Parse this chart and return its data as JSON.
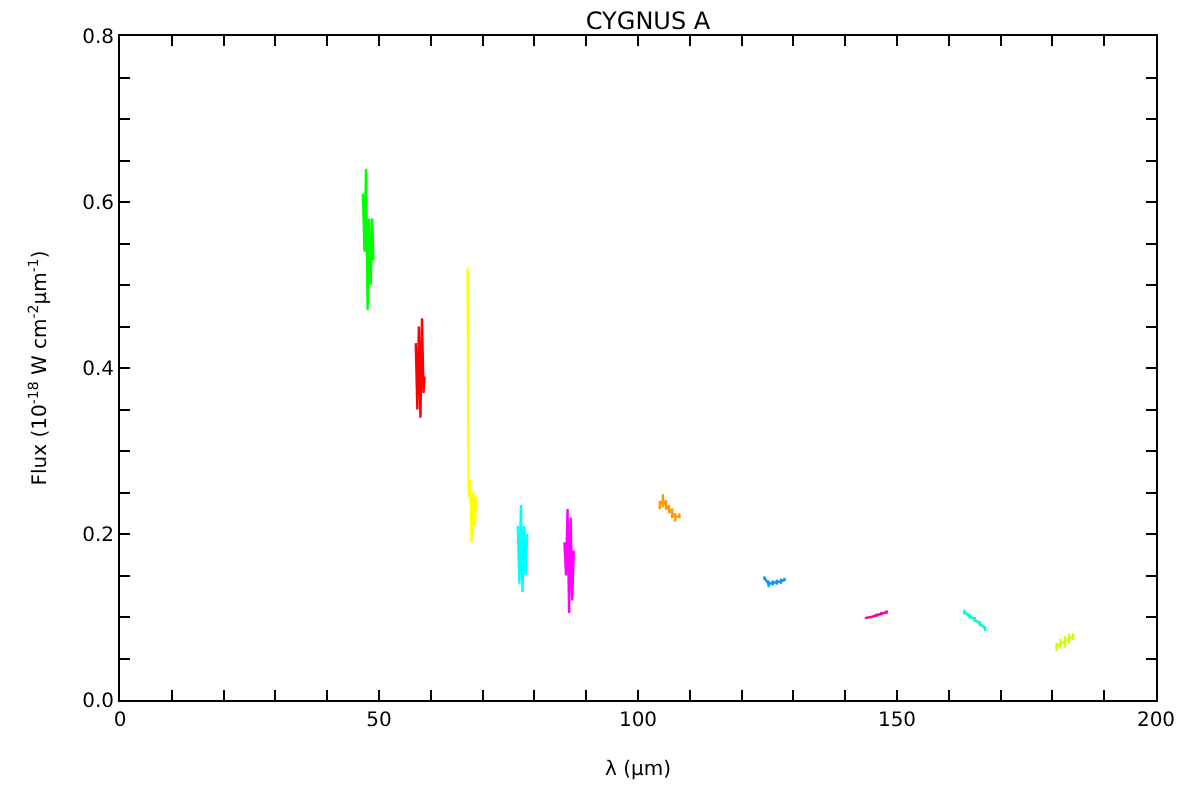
{
  "chart_data": {
    "type": "line",
    "title": "CYGNUS A",
    "xlabel": "λ (μm)",
    "ylabel": "Flux (10$^{-18}$ W cm$^{-2}$μm$^{-1}$)",
    "xlim": [
      0,
      200
    ],
    "ylim": [
      0,
      0.8
    ],
    "xticks": [
      0,
      {
        "value": 10,
        "label": null
      },
      {
        "value": 20,
        "label": null
      },
      {
        "value": 30,
        "label": null
      },
      {
        "value": 40,
        "label": null
      },
      50,
      {
        "value": 60,
        "label": null
      },
      {
        "value": 70,
        "label": null
      },
      {
        "value": 80,
        "label": null
      },
      {
        "value": 90,
        "label": null
      },
      100,
      {
        "value": 110,
        "label": null
      },
      {
        "value": 120,
        "label": null
      },
      {
        "value": 130,
        "label": null
      },
      {
        "value": 140,
        "label": null
      },
      150,
      {
        "value": 160,
        "label": null
      },
      {
        "value": 170,
        "label": null
      },
      {
        "value": 180,
        "label": null
      },
      {
        "value": 190,
        "label": null
      },
      200
    ],
    "yticks": [
      {
        "value": 0,
        "label": "0.0"
      },
      {
        "value": 0.05,
        "label": null
      },
      {
        "value": 0.1,
        "label": null
      },
      {
        "value": 0.15,
        "label": null
      },
      0.2,
      {
        "value": 0.25,
        "label": null
      },
      {
        "value": 0.3,
        "label": null
      },
      {
        "value": 0.35,
        "label": null
      },
      0.4,
      {
        "value": 0.45,
        "label": null
      },
      {
        "value": 0.5,
        "label": null
      },
      {
        "value": 0.55,
        "label": null
      },
      0.6,
      {
        "value": 0.65,
        "label": null
      },
      {
        "value": 0.7,
        "label": null
      },
      {
        "value": 0.75,
        "label": null
      },
      0.8
    ],
    "marker": "none",
    "line_style": "solid",
    "series": [
      {
        "color": "#00ff00",
        "x": [
          46.9,
          47.2,
          47.5,
          47.8,
          48.1,
          48.4,
          48.7,
          48.9
        ],
        "values": [
          0.61,
          0.54,
          0.64,
          0.47,
          0.58,
          0.5,
          0.58,
          0.53
        ]
      },
      {
        "color": "#ff0000",
        "x": [
          57.1,
          57.4,
          57.7,
          58.0,
          58.3,
          58.6,
          58.8
        ],
        "values": [
          0.43,
          0.35,
          0.45,
          0.34,
          0.46,
          0.37,
          0.39
        ]
      },
      {
        "color": "#ffff00",
        "x": [
          67.1,
          67.3,
          67.6,
          67.9,
          68.2,
          68.5,
          68.8
        ],
        "values": [
          0.52,
          0.245,
          0.265,
          0.19,
          0.25,
          0.21,
          0.245
        ]
      },
      {
        "color": "#00ffff",
        "x": [
          76.8,
          77.1,
          77.4,
          77.7,
          78.0,
          78.3,
          78.6
        ],
        "values": [
          0.21,
          0.14,
          0.235,
          0.13,
          0.21,
          0.15,
          0.2
        ]
      },
      {
        "color": "#ff00ff",
        "x": [
          85.8,
          86.1,
          86.4,
          86.7,
          87.0,
          87.3,
          87.6
        ],
        "values": [
          0.19,
          0.15,
          0.23,
          0.105,
          0.22,
          0.12,
          0.18
        ]
      },
      {
        "color": "#ff9900",
        "x": [
          104.2,
          104.8,
          105.4,
          106.0,
          106.6,
          107.2,
          108.0
        ],
        "values": [
          0.235,
          0.24,
          0.235,
          0.23,
          0.225,
          0.22,
          0.222
        ],
        "errors": [
          0.005,
          0.008,
          0.006,
          0.005,
          0.006,
          0.005,
          0.003
        ]
      },
      {
        "color": "#0099ff",
        "x": [
          124.4,
          125.2,
          126.0,
          126.8,
          127.6,
          128.3
        ],
        "values": [
          0.147,
          0.14,
          0.141,
          0.142,
          0.143,
          0.145
        ],
        "errors": [
          0.002,
          0.004,
          0.003,
          0.003,
          0.003,
          0.002
        ]
      },
      {
        "color": "#ff0099",
        "x": [
          144.0,
          145.0,
          146.0,
          147.0,
          148.0
        ],
        "values": [
          0.099,
          0.1,
          0.102,
          0.104,
          0.106
        ],
        "errors": [
          0.001,
          0.001,
          0.002,
          0.002,
          0.002
        ]
      },
      {
        "color": "#00ffcc",
        "x": [
          163.0,
          164.0,
          165.0,
          166.0,
          167.0
        ],
        "values": [
          0.106,
          0.101,
          0.097,
          0.092,
          0.086
        ],
        "errors": [
          0.003,
          0.003,
          0.003,
          0.003,
          0.003
        ]
      },
      {
        "color": "#ccff00",
        "x": [
          180.8,
          181.6,
          182.4,
          183.2,
          184.0
        ],
        "values": [
          0.064,
          0.068,
          0.07,
          0.074,
          0.076
        ],
        "errors": [
          0.005,
          0.006,
          0.007,
          0.006,
          0.004
        ]
      }
    ]
  }
}
